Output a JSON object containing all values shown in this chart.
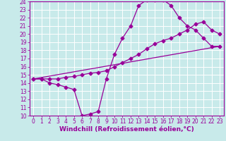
{
  "xlabel": "Windchill (Refroidissement éolien,°C)",
  "bg_color": "#c8eaea",
  "line_color": "#990099",
  "grid_color": "#ffffff",
  "ylim": [
    10,
    24
  ],
  "xlim": [
    -0.5,
    23.5
  ],
  "yticks": [
    10,
    11,
    12,
    13,
    14,
    15,
    16,
    17,
    18,
    19,
    20,
    21,
    22,
    23,
    24
  ],
  "xticks": [
    0,
    1,
    2,
    3,
    4,
    5,
    6,
    7,
    8,
    9,
    10,
    11,
    12,
    13,
    14,
    15,
    16,
    17,
    18,
    19,
    20,
    21,
    22,
    23
  ],
  "line1_x": [
    0,
    1,
    2,
    3,
    4,
    5,
    6,
    7,
    8,
    9,
    10,
    11,
    12,
    13,
    14,
    15,
    16,
    17,
    18,
    19,
    20,
    21,
    22,
    23
  ],
  "line1_y": [
    14.5,
    14.5,
    14.0,
    13.8,
    13.5,
    13.2,
    10.0,
    10.2,
    10.5,
    14.5,
    17.5,
    19.5,
    21.0,
    23.5,
    24.2,
    24.2,
    24.2,
    23.5,
    22.0,
    21.0,
    20.5,
    19.5,
    18.5,
    18.5
  ],
  "line2_x": [
    0,
    1,
    2,
    3,
    4,
    5,
    6,
    7,
    8,
    9,
    10,
    11,
    12,
    13,
    14,
    15,
    16,
    17,
    18,
    19,
    20,
    21,
    22,
    23
  ],
  "line2_y": [
    14.5,
    14.5,
    14.5,
    14.5,
    14.7,
    14.8,
    15.0,
    15.2,
    15.3,
    15.5,
    16.0,
    16.5,
    17.0,
    17.5,
    18.2,
    18.8,
    19.2,
    19.5,
    20.0,
    20.5,
    21.2,
    21.5,
    20.5,
    20.0
  ],
  "line3_x": [
    0,
    23
  ],
  "line3_y": [
    14.5,
    18.5
  ],
  "tick_fontsize": 5.5,
  "label_fontsize": 6.5
}
